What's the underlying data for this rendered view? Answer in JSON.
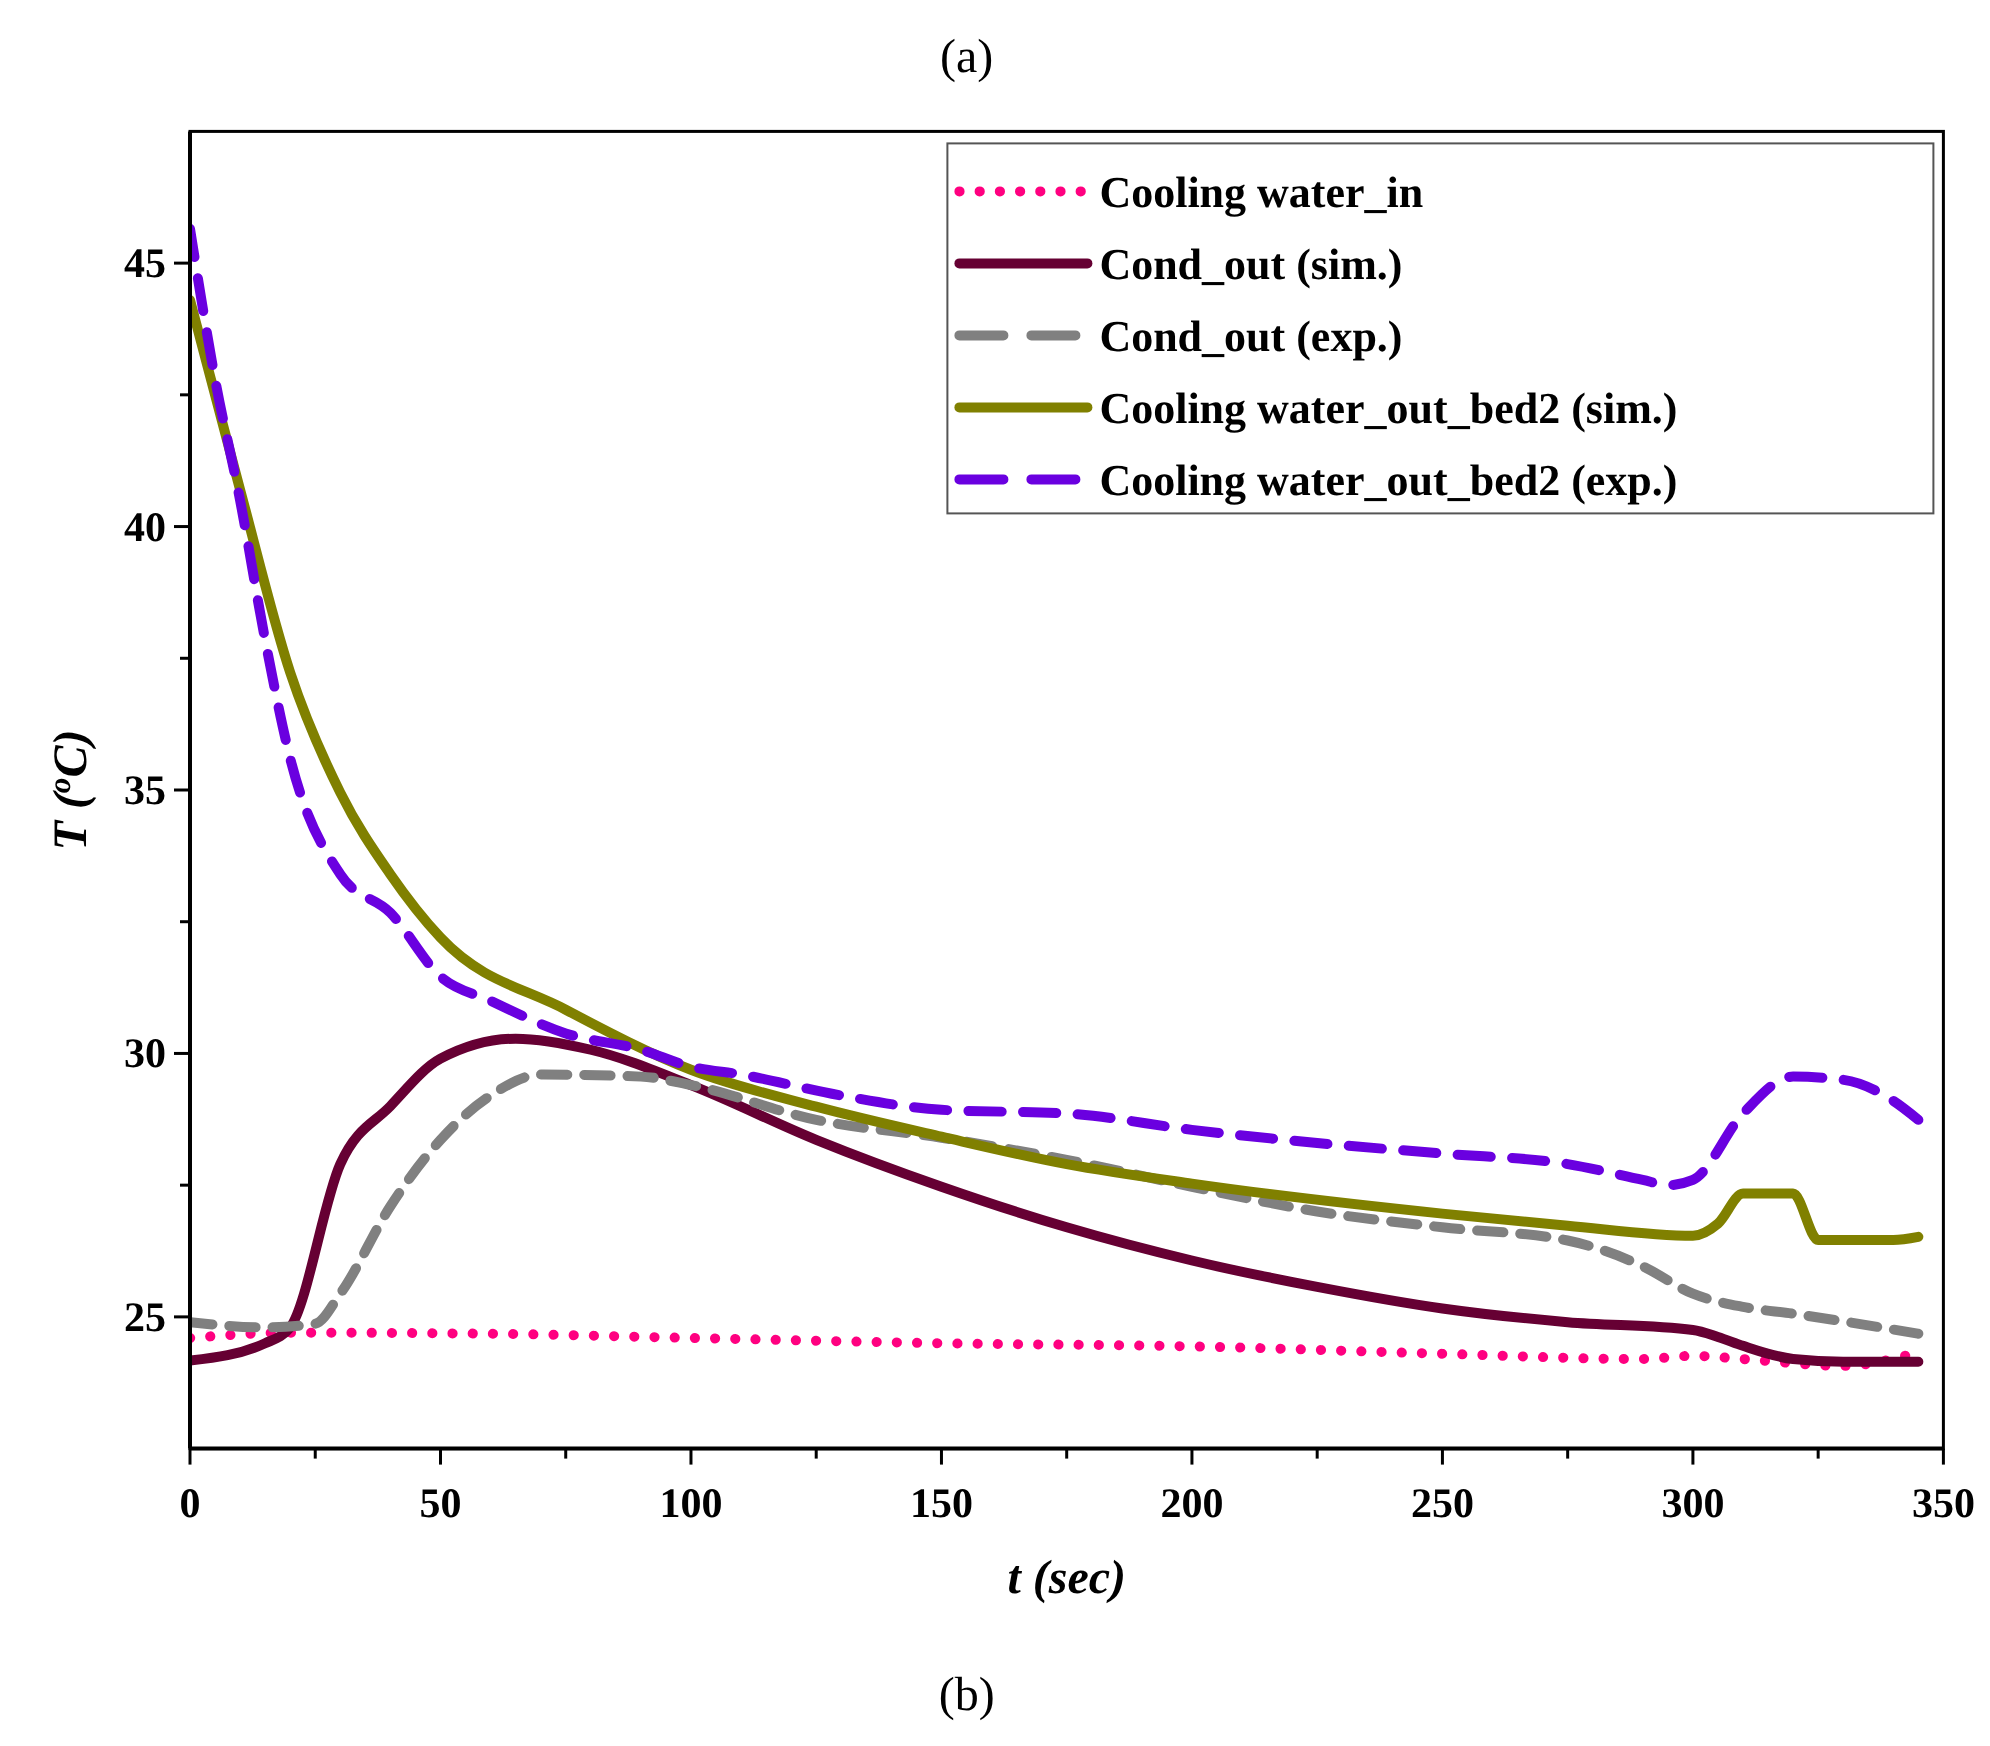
{
  "chart_data": {
    "type": "line",
    "title": "(a)",
    "xlabel": "t (sec)",
    "ylabel": "T ($^{o}$C)",
    "annotations": [
      "(b)"
    ],
    "xlim": [
      0,
      350
    ],
    "xticks": [
      0,
      {
        "value": 25,
        "label": null
      },
      50,
      {
        "value": 75,
        "label": null
      },
      100,
      {
        "value": 125,
        "label": null
      },
      150,
      {
        "value": 175,
        "label": null
      },
      200,
      {
        "value": 225,
        "label": null
      },
      250,
      {
        "value": 275,
        "label": null
      },
      300,
      {
        "value": 325,
        "label": null
      },
      350
    ],
    "ylim": [
      22.5,
      47.5
    ],
    "yticks": [
      25,
      {
        "value": 27.5,
        "label": null
      },
      30,
      {
        "value": 32.5,
        "label": null
      },
      35,
      {
        "value": 37.5,
        "label": null
      },
      40,
      {
        "value": 42.5,
        "label": null
      },
      45
    ],
    "legend": "top right",
    "grid": false,
    "marker": "none",
    "series": [
      {
        "name": "Cooling water_in",
        "color": "#ff0080",
        "line_style": "dotted",
        "x": [
          0,
          20,
          60,
          100,
          150,
          200,
          250,
          290,
          300,
          310,
          330,
          345
        ],
        "values": [
          24.6,
          24.7,
          24.68,
          24.6,
          24.5,
          24.44,
          24.3,
          24.2,
          24.26,
          24.2,
          24.07,
          24.33
        ]
      },
      {
        "name": "Cond_out (sim.)",
        "color": "#660033",
        "line_style": "solid",
        "x": [
          0,
          15,
          20,
          30,
          40,
          50,
          65,
          80,
          100,
          125,
          150,
          175,
          200,
          225,
          250,
          275,
          300,
          305,
          310,
          320,
          330,
          345
        ],
        "values": [
          24.17,
          24.5,
          24.8,
          27.9,
          29.0,
          29.9,
          30.28,
          30.07,
          29.4,
          28.36,
          27.47,
          26.7,
          26.07,
          25.57,
          25.16,
          24.9,
          24.75,
          24.62,
          24.45,
          24.2,
          24.15,
          24.15
        ]
      },
      {
        "name": "Cond_out (exp.)",
        "color": "#808080",
        "line_style": "dashed",
        "x": [
          0,
          15,
          25,
          30,
          40,
          50,
          60,
          70,
          90,
          100,
          125,
          150,
          175,
          200,
          225,
          250,
          275,
          290,
          300,
          310,
          320,
          345
        ],
        "values": [
          24.9,
          24.8,
          24.87,
          25.44,
          27.1,
          28.36,
          29.2,
          29.6,
          29.56,
          29.4,
          28.74,
          28.4,
          27.98,
          27.47,
          27.0,
          26.7,
          26.45,
          25.96,
          25.44,
          25.19,
          25.06,
          24.68
        ]
      },
      {
        "name": "Cooling water_out_bed2 (sim.)",
        "color": "#808000",
        "line_style": "solid",
        "x": [
          0,
          10,
          20,
          30,
          40,
          50,
          75,
          100,
          125,
          150,
          175,
          200,
          250,
          275,
          300,
          305,
          310,
          320,
          325,
          340,
          345
        ],
        "values": [
          44.3,
          40.7,
          37.23,
          34.95,
          33.4,
          32.2,
          30.83,
          29.69,
          28.99,
          28.42,
          27.9,
          27.53,
          26.96,
          26.73,
          26.54,
          26.77,
          27.34,
          27.34,
          26.46,
          26.46,
          26.52
        ]
      },
      {
        "name": "Cooling water_out_bed2 (exp.)",
        "color": "#6a00e0",
        "line_style": "dashed",
        "x": [
          0,
          5,
          10,
          15,
          20,
          30,
          40,
          50,
          60,
          75,
          90,
          100,
          110,
          130,
          150,
          175,
          200,
          225,
          250,
          275,
          290,
          295,
          300,
          310,
          320,
          330,
          340,
          345
        ],
        "values": [
          45.65,
          42.8,
          40.5,
          37.85,
          35.6,
          33.4,
          32.67,
          31.46,
          31.0,
          30.38,
          30.07,
          29.75,
          29.6,
          29.2,
          28.93,
          28.86,
          28.55,
          28.3,
          28.1,
          27.9,
          27.6,
          27.5,
          27.6,
          28.86,
          29.56,
          29.5,
          29.1,
          28.74
        ]
      }
    ]
  }
}
